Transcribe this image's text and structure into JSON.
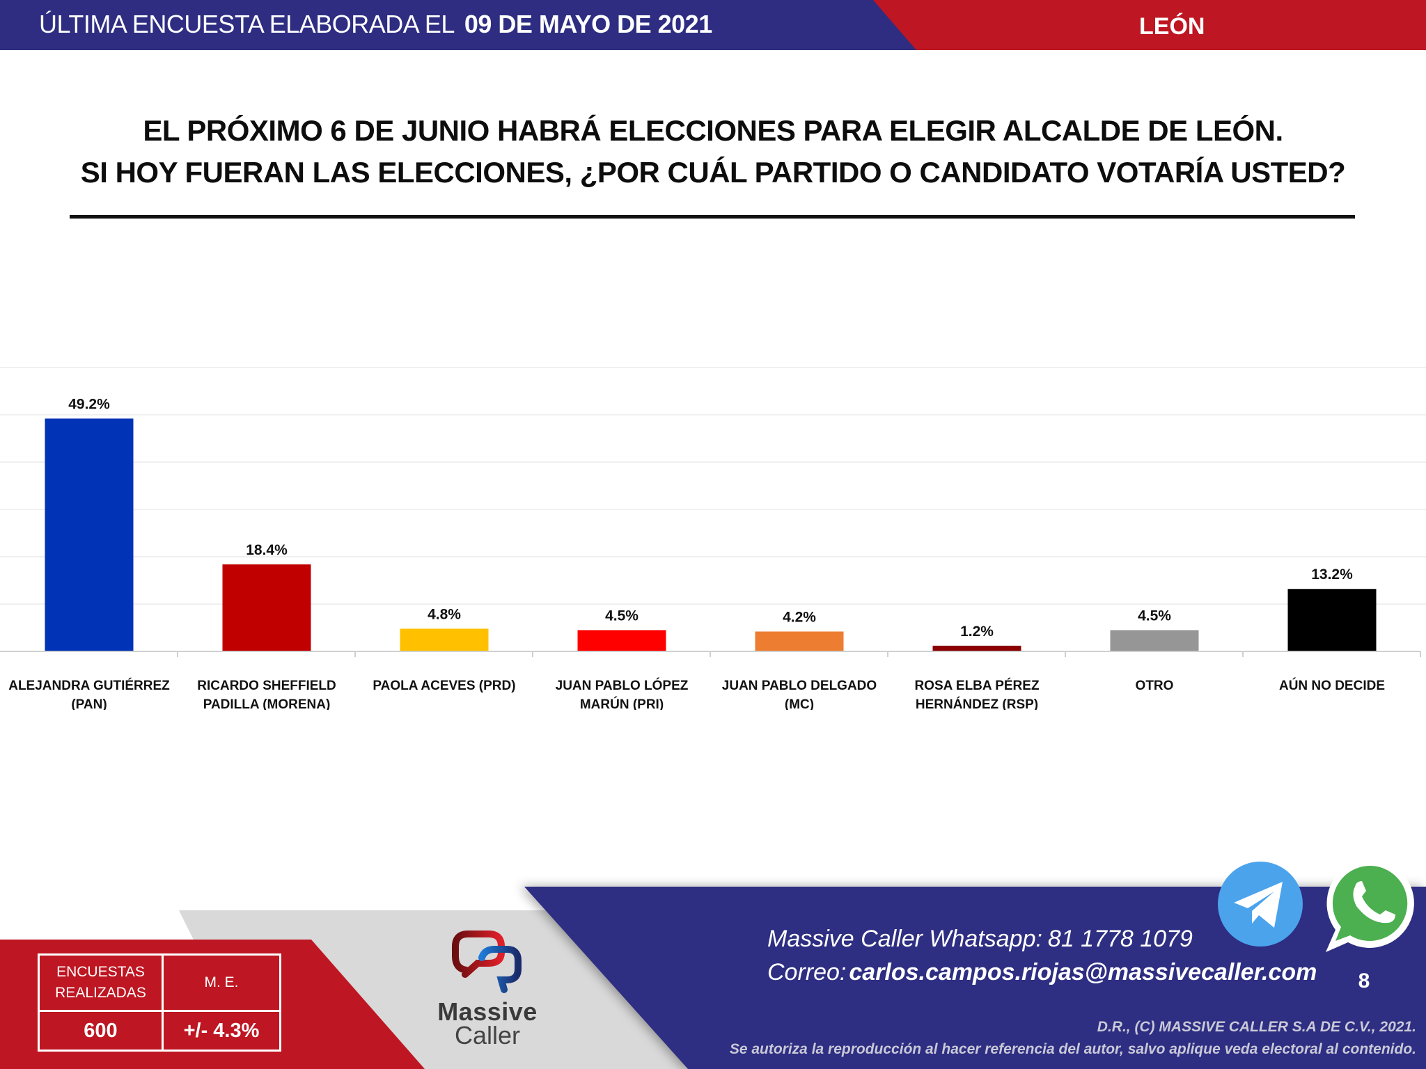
{
  "header": {
    "survey_prefix": "ÚLTIMA ENCUESTA ELABORADA EL",
    "survey_date": "09 DE MAYO DE 2021",
    "city": "LEÓN",
    "colors": {
      "blue": "#2e2d82",
      "red": "#be1622"
    }
  },
  "question": {
    "line1": "EL PRÓXIMO 6 DE JUNIO HABRÁ ELECCIONES PARA ELEGIR ALCALDE DE LEÓN.",
    "line2": "SI HOY FUERAN LAS ELECCIONES, ¿POR CUÁL PARTIDO O CANDIDATO VOTARÍA USTED?"
  },
  "chart_data": {
    "type": "bar",
    "title": "",
    "xlabel": "",
    "ylabel": "",
    "ylim": [
      0,
      60
    ],
    "grid": true,
    "y_axis_labels_visible": false,
    "categories": [
      [
        "ALEJANDRA GUTIÉRREZ",
        "(PAN)"
      ],
      [
        "RICARDO SHEFFIELD",
        "PADILLA (MORENA)"
      ],
      [
        "PAOLA ACEVES (PRD)"
      ],
      [
        "JUAN PABLO LÓPEZ",
        "MARÚN (PRI)"
      ],
      [
        "JUAN PABLO DELGADO",
        "(MC)"
      ],
      [
        "ROSA ELBA PÉREZ",
        "HERNÁNDEZ (RSP)"
      ],
      [
        "OTRO"
      ],
      [
        "AÚN NO DECIDE"
      ]
    ],
    "values": [
      49.2,
      18.4,
      4.8,
      4.5,
      4.2,
      1.2,
      4.5,
      13.2
    ],
    "value_labels": [
      "49.2%",
      "18.4%",
      "4.8%",
      "4.5%",
      "4.2%",
      "1.2%",
      "4.5%",
      "13.2%"
    ],
    "colors": [
      "#0033b5",
      "#c00000",
      "#ffc000",
      "#ff0000",
      "#ed7d31",
      "#8b0000",
      "#969696",
      "#000000"
    ]
  },
  "stats": {
    "surveys_label_line1": "ENCUESTAS",
    "surveys_label_line2": "REALIZADAS",
    "surveys_value": "600",
    "me_label": "M. E.",
    "me_value": "+/- 4.3%"
  },
  "logo": {
    "name_line1": "Massive",
    "name_line2": "Caller"
  },
  "contact": {
    "whatsapp_label": "Massive Caller Whatsapp:",
    "whatsapp_number": "81 1778 1079",
    "email_label": "Correo:",
    "email": "carlos.campos.riojas@massivecaller.com",
    "page_number": "8",
    "icons": [
      "telegram-icon",
      "whatsapp-icon"
    ]
  },
  "legal": {
    "line1": "D.R., (C) MASSIVE CALLER S.A DE C.V., 2021.",
    "line2": "Se autoriza la reproducción al hacer referencia del autor, salvo aplique veda electoral al contenido."
  }
}
